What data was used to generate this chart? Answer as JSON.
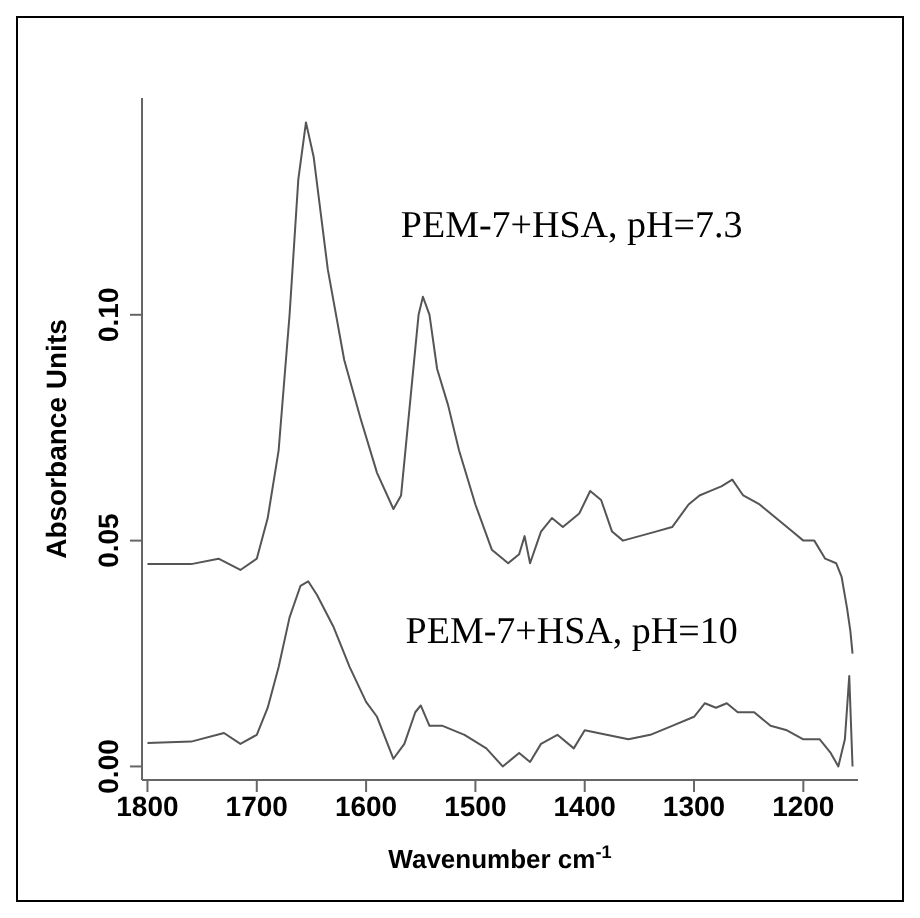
{
  "chart_data": {
    "type": "line",
    "xlabel": "Wavenumber cm$^{-1}$",
    "ylabel": "Absorbance Units",
    "xlim": [
      1805,
      1150
    ],
    "xticks": [
      1800,
      1700,
      1600,
      1500,
      1400,
      1300,
      1200
    ],
    "ylim": [
      -0.003,
      0.148
    ],
    "yticks": [
      {
        "value": 0,
        "label": "0.00"
      },
      {
        "value": 0.05,
        "label": "0.05"
      },
      {
        "value": 0.1,
        "label": "0.10"
      }
    ],
    "grid": false,
    "marker": "none",
    "line_style": "solid",
    "series": [
      {
        "name": "PEM-7+HSA, pH=7.3",
        "color": "#555555",
        "x": [
          1800,
          1760,
          1735,
          1715,
          1700,
          1690,
          1680,
          1670,
          1662,
          1655,
          1648,
          1635,
          1620,
          1605,
          1590,
          1575,
          1568,
          1560,
          1552,
          1548,
          1542,
          1535,
          1525,
          1515,
          1500,
          1485,
          1470,
          1460,
          1455,
          1450,
          1440,
          1430,
          1420,
          1405,
          1395,
          1385,
          1375,
          1365,
          1350,
          1335,
          1320,
          1305,
          1295,
          1285,
          1275,
          1265,
          1255,
          1240,
          1225,
          1210,
          1200,
          1190,
          1180,
          1170,
          1165,
          1160,
          1157,
          1155
        ],
        "values": [
          0.0448,
          0.0448,
          0.046,
          0.0435,
          0.046,
          0.055,
          0.07,
          0.1,
          0.13,
          0.1426,
          0.135,
          0.11,
          0.09,
          0.077,
          0.065,
          0.057,
          0.06,
          0.08,
          0.1,
          0.104,
          0.1,
          0.088,
          0.08,
          0.07,
          0.058,
          0.048,
          0.045,
          0.047,
          0.051,
          0.045,
          0.052,
          0.055,
          0.053,
          0.056,
          0.061,
          0.059,
          0.052,
          0.05,
          0.051,
          0.052,
          0.053,
          0.058,
          0.06,
          0.061,
          0.062,
          0.0635,
          0.06,
          0.058,
          0.055,
          0.052,
          0.05,
          0.05,
          0.046,
          0.045,
          0.042,
          0.035,
          0.03,
          0.025
        ]
      },
      {
        "name": "PEM-7+HSA, pH=10",
        "color": "#555555",
        "x": [
          1800,
          1760,
          1730,
          1715,
          1700,
          1690,
          1680,
          1670,
          1660,
          1653,
          1645,
          1630,
          1615,
          1600,
          1590,
          1575,
          1565,
          1555,
          1550,
          1542,
          1530,
          1510,
          1490,
          1475,
          1460,
          1450,
          1440,
          1425,
          1410,
          1400,
          1380,
          1360,
          1340,
          1320,
          1300,
          1290,
          1280,
          1270,
          1260,
          1245,
          1230,
          1215,
          1200,
          1185,
          1175,
          1168,
          1162,
          1158,
          1155
        ],
        "values": [
          0.0052,
          0.0055,
          0.0074,
          0.005,
          0.007,
          0.013,
          0.022,
          0.033,
          0.04,
          0.041,
          0.038,
          0.031,
          0.022,
          0.0143,
          0.011,
          0.0017,
          0.005,
          0.012,
          0.0135,
          0.009,
          0.009,
          0.007,
          0.004,
          0,
          0.003,
          0.001,
          0.005,
          0.007,
          0.004,
          0.008,
          0.007,
          0.006,
          0.007,
          0.009,
          0.011,
          0.014,
          0.013,
          0.014,
          0.012,
          0.012,
          0.009,
          0.008,
          0.006,
          0.006,
          0.003,
          0,
          0.006,
          0.02,
          0
        ]
      }
    ]
  }
}
